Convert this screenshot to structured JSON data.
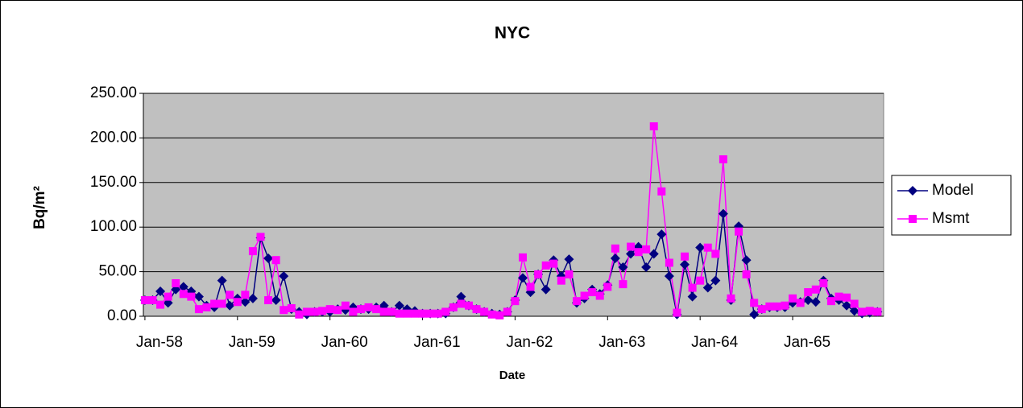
{
  "chart_data": {
    "type": "line",
    "title": "NYC",
    "x_label": "Date",
    "y_label": "Bq/m²",
    "categories": [
      "Jan-58",
      null,
      null,
      null,
      null,
      null,
      null,
      null,
      null,
      null,
      null,
      null,
      "Jan-59",
      null,
      null,
      null,
      null,
      null,
      null,
      null,
      null,
      null,
      null,
      null,
      "Jan-60",
      null,
      null,
      null,
      null,
      null,
      null,
      null,
      null,
      null,
      null,
      null,
      "Jan-61",
      null,
      null,
      null,
      null,
      null,
      null,
      null,
      null,
      null,
      null,
      null,
      "Jan-62",
      null,
      null,
      null,
      null,
      null,
      null,
      null,
      null,
      null,
      null,
      null,
      "Jan-63",
      null,
      null,
      null,
      null,
      null,
      null,
      null,
      null,
      null,
      null,
      null,
      "Jan-64",
      null,
      null,
      null,
      null,
      null,
      null,
      null,
      null,
      null,
      null,
      null,
      "Jan-65",
      null,
      null,
      null,
      null,
      null,
      null,
      null,
      null,
      null,
      null,
      null
    ],
    "series": [
      {
        "name": "Model",
        "color": "#000080",
        "marker": "diamond",
        "values": [
          18,
          18,
          28,
          15,
          30,
          33,
          28,
          22,
          12,
          10,
          40,
          12,
          20,
          16,
          20,
          88,
          65,
          18,
          45,
          8,
          5,
          2,
          5,
          5,
          5,
          8,
          7,
          10,
          8,
          8,
          10,
          12,
          5,
          12,
          8,
          6,
          3,
          3,
          3,
          3,
          10,
          22,
          12,
          8,
          5,
          3,
          2,
          5,
          18,
          43,
          27,
          47,
          30,
          63,
          45,
          64,
          15,
          20,
          30,
          25,
          35,
          65,
          55,
          70,
          78,
          55,
          70,
          92,
          45,
          2,
          58,
          22,
          77,
          32,
          40,
          115,
          18,
          101,
          63,
          2,
          8,
          10,
          10,
          10,
          15,
          16,
          18,
          16,
          40,
          20,
          18,
          12,
          6,
          3,
          4,
          5
        ]
      },
      {
        "name": "Msmt",
        "color": "#FF00FF",
        "marker": "square",
        "values": [
          18,
          18,
          13,
          22,
          37,
          25,
          22,
          8,
          10,
          14,
          14,
          24,
          16,
          24,
          73,
          89,
          18,
          63,
          7,
          9,
          2,
          5,
          5,
          6,
          8,
          7,
          12,
          5,
          8,
          10,
          8,
          5,
          5,
          3,
          3,
          3,
          3,
          3,
          3,
          5,
          10,
          14,
          12,
          8,
          5,
          2,
          1,
          5,
          17,
          66,
          33,
          47,
          57,
          59,
          40,
          47,
          17,
          23,
          27,
          23,
          33,
          76,
          36,
          78,
          72,
          75,
          213,
          140,
          60,
          4,
          67,
          32,
          40,
          77,
          70,
          176,
          20,
          95,
          47,
          15,
          8,
          11,
          11,
          12,
          20,
          15,
          27,
          30,
          37,
          17,
          22,
          21,
          14,
          5,
          6,
          5
        ]
      }
    ],
    "ylim": [
      0,
      250
    ],
    "yticks": [
      {
        "value": 0,
        "label": "0.00"
      },
      {
        "value": 50,
        "label": "50.00"
      },
      {
        "value": 100,
        "label": "100.00"
      },
      {
        "value": 150,
        "label": "150.00"
      },
      {
        "value": 200,
        "label": "200.00"
      },
      {
        "value": 250,
        "label": "250.00"
      }
    ],
    "grid": true,
    "legend": "right",
    "plot_background": "#C0C0C0"
  }
}
